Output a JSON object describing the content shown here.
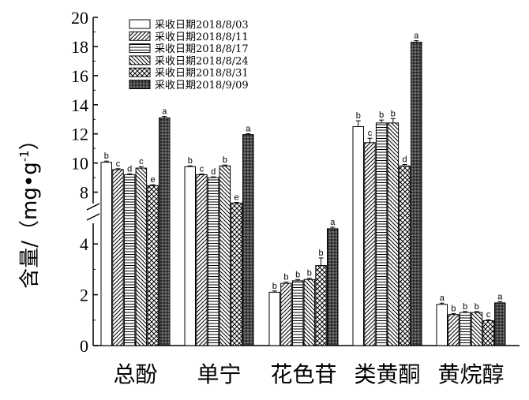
{
  "chart_data": {
    "type": "bar",
    "title": "",
    "xlabel": "",
    "ylabel": "含量/（mg•g",
    "ylabel_sup": "-1",
    "ylabel_close": "）",
    "ylim": [
      0,
      20
    ],
    "axis_break": [
      5,
      7
    ],
    "yticks": [
      0,
      2,
      4,
      8,
      10,
      12,
      14,
      16,
      18,
      20
    ],
    "ytick_labels": [
      "0",
      "2",
      "4",
      "8",
      "10",
      "12",
      "14",
      "16",
      "18",
      "20"
    ],
    "legend_position": "top-left",
    "categories": [
      "总酚",
      "单宁",
      "花色苷",
      "类黄酮",
      "黄烷醇"
    ],
    "series": [
      {
        "name": "采收日期2018/8/03",
        "pattern": "empty",
        "values": [
          10.05,
          9.75,
          2.1,
          12.5,
          1.62
        ],
        "errors": [
          0.08,
          0.06,
          0.05,
          0.4,
          0.05
        ],
        "labels": [
          "b",
          "b",
          "b",
          "b",
          "a"
        ]
      },
      {
        "name": "采收日期2018/8/11",
        "pattern": "diagonal-forward",
        "values": [
          9.55,
          9.2,
          2.45,
          11.4,
          1.22
        ],
        "errors": [
          0.06,
          0.05,
          0.05,
          0.3,
          0.04
        ],
        "labels": [
          "c",
          "c",
          "b",
          "c",
          "b"
        ]
      },
      {
        "name": "采收日期2018/8/17",
        "pattern": "horizontal",
        "values": [
          9.2,
          9.0,
          2.55,
          12.75,
          1.3
        ],
        "errors": [
          0.06,
          0.05,
          0.05,
          0.2,
          0.04
        ],
        "labels": [
          "d",
          "d",
          "b",
          "b",
          "b"
        ]
      },
      {
        "name": "采收日期2018/8/24",
        "pattern": "diagonal-back",
        "values": [
          9.65,
          9.8,
          2.6,
          12.75,
          1.3
        ],
        "errors": [
          0.1,
          0.06,
          0.05,
          0.3,
          0.04
        ],
        "labels": [
          "c",
          "b",
          "b",
          "b",
          "b"
        ]
      },
      {
        "name": "采收日期2018/8/31",
        "pattern": "crosshatch",
        "values": [
          8.45,
          7.25,
          3.15,
          9.8,
          0.98
        ],
        "errors": [
          0.06,
          0.05,
          0.3,
          0.1,
          0.04
        ],
        "labels": [
          "e",
          "e",
          "b",
          "d",
          "c"
        ]
      },
      {
        "name": "采收日期2018/9/09",
        "pattern": "dense-crosshatch",
        "values": [
          13.1,
          11.95,
          4.6,
          18.3,
          1.68
        ],
        "errors": [
          0.1,
          0.06,
          0.06,
          0.1,
          0.05
        ],
        "labels": [
          "a",
          "a",
          "a",
          "a",
          "a"
        ]
      }
    ]
  }
}
